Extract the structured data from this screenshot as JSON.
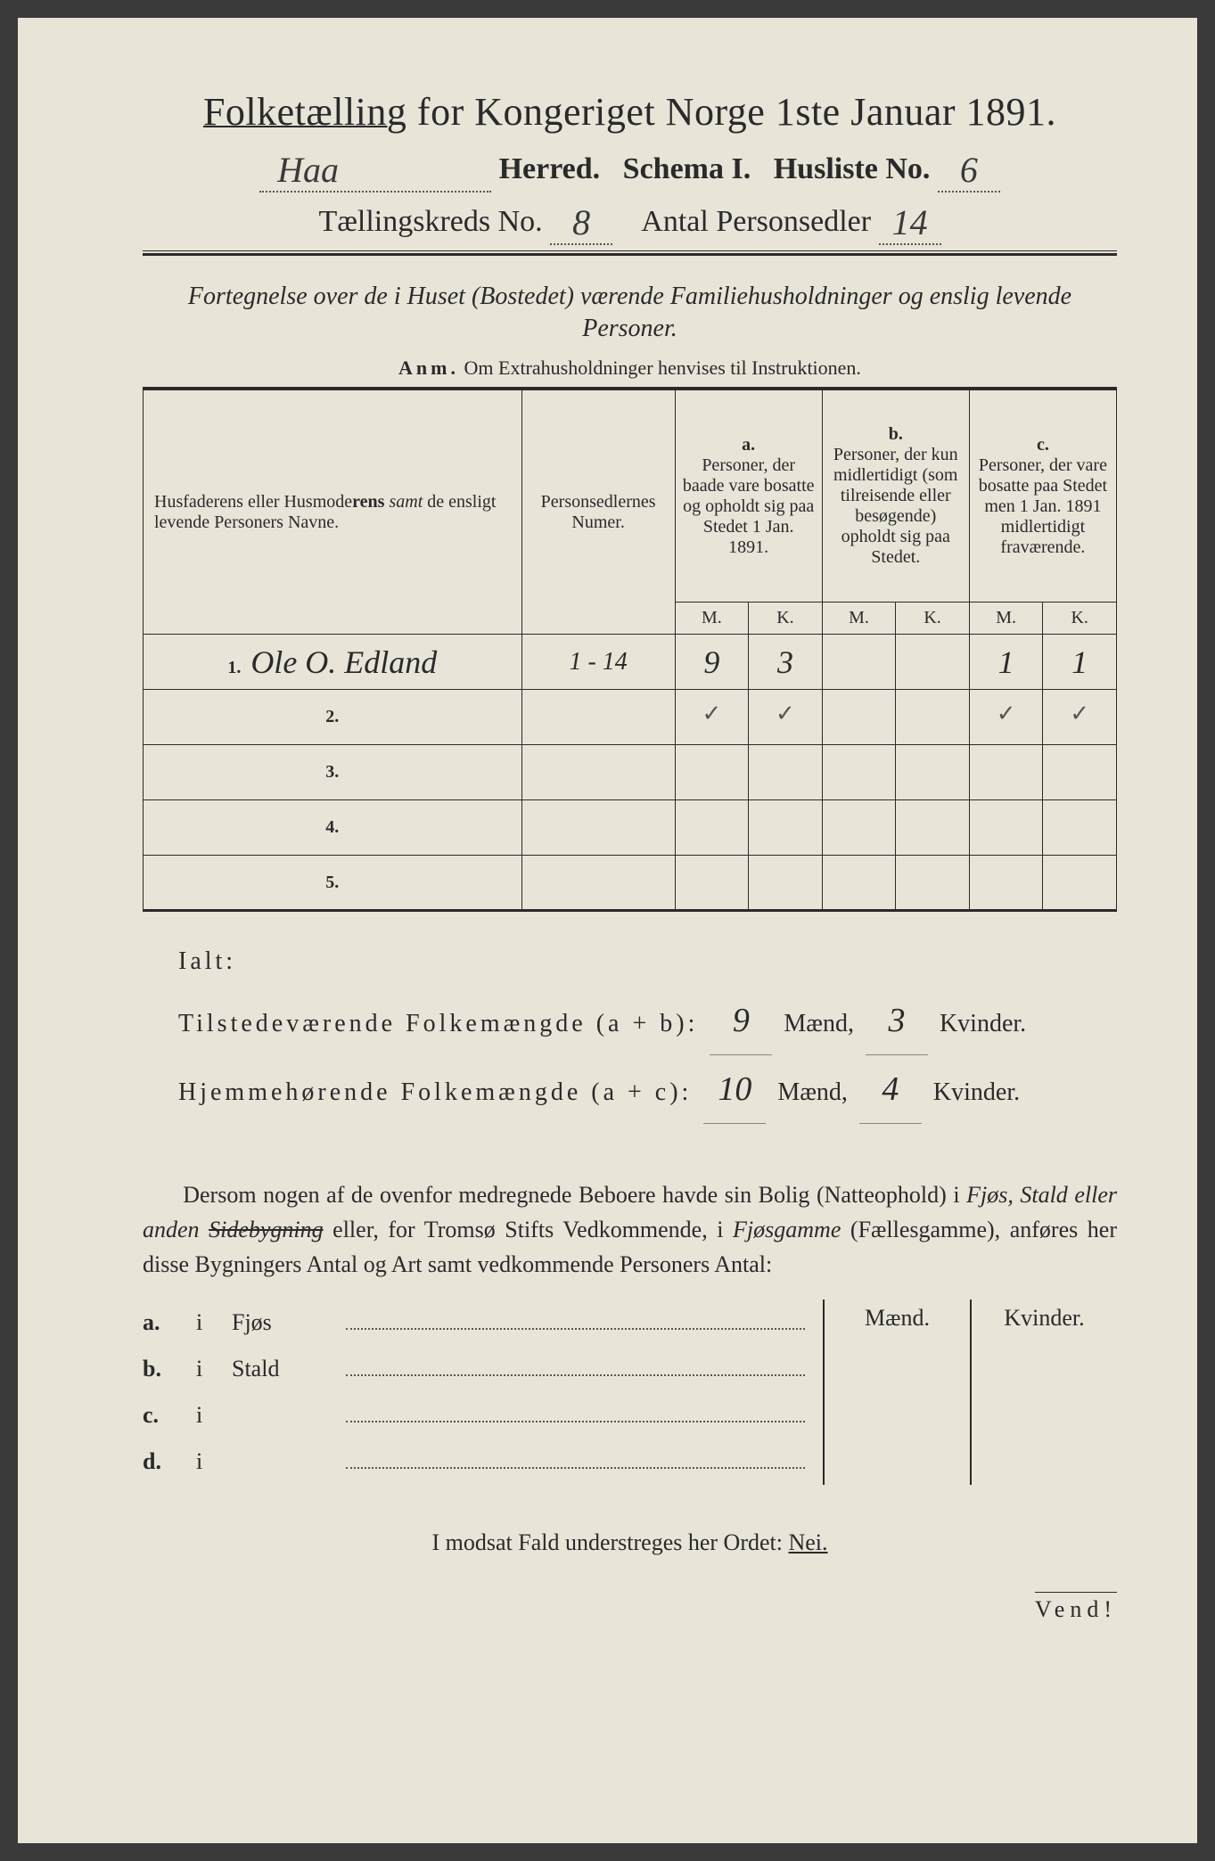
{
  "title": {
    "underlined_word": "Folketælling",
    "rest": " for Kongeriget Norge 1ste Januar 1891."
  },
  "line2": {
    "herred_value": "Haa",
    "herred_label": "Herred.",
    "schema_label": "Schema I.",
    "husliste_label": "Husliste No.",
    "husliste_value": "6"
  },
  "line3": {
    "tk_label": "Tællingskreds No.",
    "tk_value": "8",
    "antal_label": "Antal Personsedler",
    "antal_value": "14"
  },
  "fortegnelse": "Fortegnelse over de i Huset (Bostedet) værende Familiehusholdninger og enslig levende Personer.",
  "anm_label": "Anm.",
  "anm_text": "Om Extrahusholdninger henvises til Instruktionen.",
  "headers": {
    "col1": "Husfaderens eller Husmoderens samt de ensligt levende Personers Navne.",
    "col2": "Personsedlernes Numer.",
    "col_a_label": "a.",
    "col_a_text": "Personer, der baade vare bosatte og opholdt sig paa Stedet 1 Jan. 1891.",
    "col_b_label": "b.",
    "col_b_text": "Personer, der kun midlertidigt (som tilreisende eller besøgende) opholdt sig paa Stedet.",
    "col_c_label": "c.",
    "col_c_text": "Personer, der vare bosatte paa Stedet men 1 Jan. 1891 midlertidigt fraværende.",
    "m": "M.",
    "k": "K."
  },
  "rows": [
    {
      "num": "1.",
      "name": "Ole O. Edland",
      "ps": "1 - 14",
      "am": "9",
      "ak": "3",
      "bm": "",
      "bk": "",
      "cm": "1",
      "ck": "1",
      "check_am": "✓",
      "check_ak": "✓",
      "check_cm": "✓",
      "check_ck": "✓"
    },
    {
      "num": "2.",
      "name": "",
      "ps": "",
      "am": "",
      "ak": "",
      "bm": "",
      "bk": "",
      "cm": "",
      "ck": ""
    },
    {
      "num": "3.",
      "name": "",
      "ps": "",
      "am": "",
      "ak": "",
      "bm": "",
      "bk": "",
      "cm": "",
      "ck": ""
    },
    {
      "num": "4.",
      "name": "",
      "ps": "",
      "am": "",
      "ak": "",
      "bm": "",
      "bk": "",
      "cm": "",
      "ck": ""
    },
    {
      "num": "5.",
      "name": "",
      "ps": "",
      "am": "",
      "ak": "",
      "bm": "",
      "bk": "",
      "cm": "",
      "ck": ""
    }
  ],
  "ialt": {
    "ialt_label": "Ialt:",
    "tilstede_label": "Tilstedeværende Folkemængde (a + b):",
    "tilstede_m": "9",
    "tilstede_k": "3",
    "hjemme_label": "Hjemmehørende Folkemængde (a + c):",
    "hjemme_m": "10",
    "hjemme_k": "4",
    "maend": "Mænd,",
    "kvinder": "Kvinder."
  },
  "dersom": {
    "p1a": "Dersom nogen af de ovenfor medregnede Beboere havde sin Bolig (Natteophold) i ",
    "p1b_italic": "Fjøs, Stald eller anden ",
    "p1b_strike": "Sidebygning",
    "p1c": " eller, for Tromsø Stifts Vedkommende, i ",
    "p1d_italic": "Fjøsgamme",
    "p1e": " (Fællesgamme), anføres her disse Bygningers Antal og Art samt vedkommende Personers Antal:"
  },
  "bygn_headers": {
    "maend": "Mænd.",
    "kvinder": "Kvinder."
  },
  "bygn_rows": [
    {
      "lab": "a.",
      "i": "i",
      "type": "Fjøs"
    },
    {
      "lab": "b.",
      "i": "i",
      "type": "Stald"
    },
    {
      "lab": "c.",
      "i": "i",
      "type": ""
    },
    {
      "lab": "d.",
      "i": "i",
      "type": ""
    }
  ],
  "modsat": {
    "text": "I modsat Fald understreges her Ordet: ",
    "nei": "Nei."
  },
  "vend": "Vend!"
}
